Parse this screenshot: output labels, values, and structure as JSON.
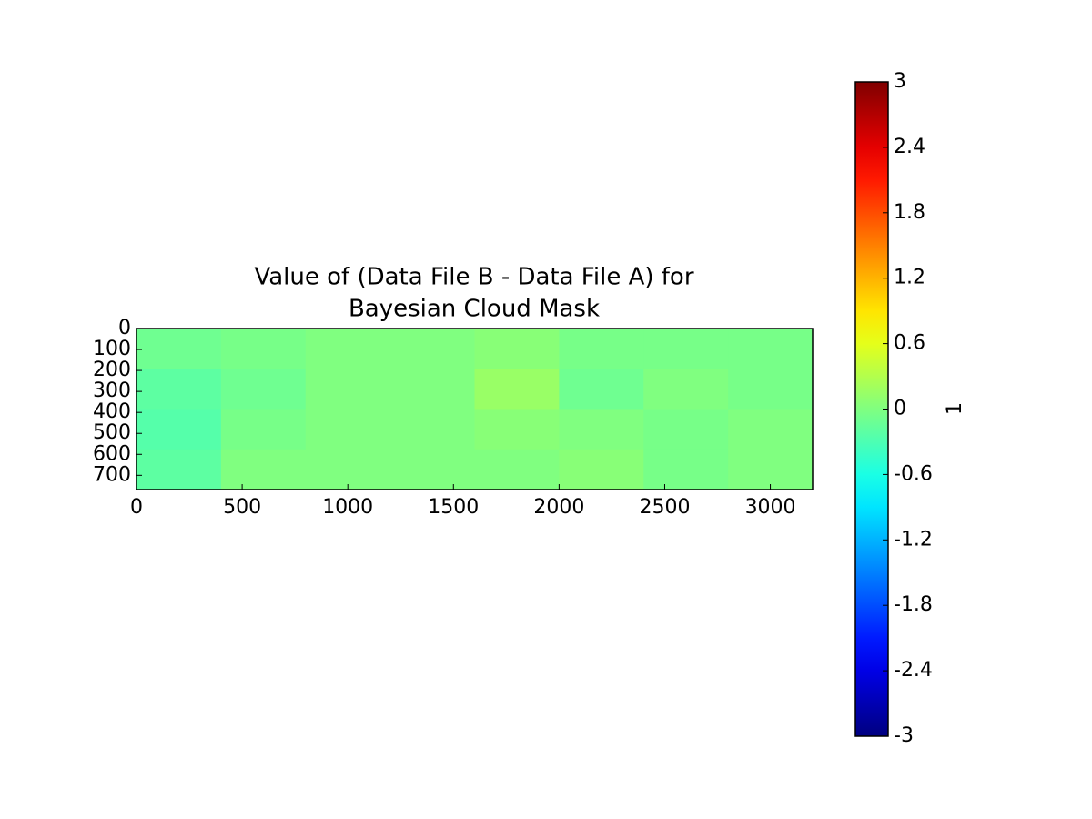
{
  "chart_data": {
    "type": "heatmap",
    "title": [
      "Value of (Data File B - Data File A) for",
      "Bayesian Cloud Mask"
    ],
    "xlim": [
      0,
      3200
    ],
    "xticks": [
      0,
      500,
      1000,
      1500,
      2000,
      2500,
      3000
    ],
    "ylim": [
      768,
      0
    ],
    "yticks": [
      0,
      100,
      200,
      300,
      400,
      500,
      600,
      700
    ],
    "z": [
      [
        -0.1,
        -0.05,
        0,
        0,
        0.05,
        -0.05,
        -0.05,
        -0.05
      ],
      [
        -0.2,
        -0.1,
        0,
        0,
        0.15,
        -0.1,
        0,
        -0.05
      ],
      [
        -0.25,
        -0.05,
        0,
        0,
        0.05,
        0,
        -0.05,
        0
      ],
      [
        -0.2,
        0,
        0,
        0,
        0,
        0.05,
        -0.05,
        0
      ]
    ],
    "colormap": "jet",
    "colorbar": {
      "label": "1",
      "lim": [
        -3,
        3
      ],
      "ticks": [
        -3,
        -2.4,
        -1.8,
        -1.2,
        -0.6,
        0,
        0.6,
        1.2,
        1.8,
        2.4,
        3
      ]
    }
  }
}
